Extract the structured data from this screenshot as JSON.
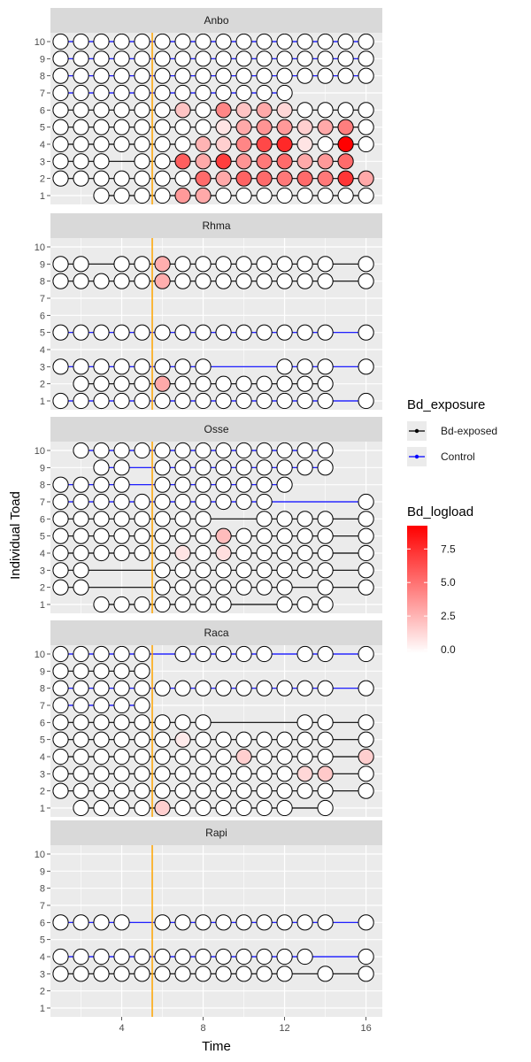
{
  "chart_data": {
    "type": "scatter",
    "xlabel": "Time",
    "ylabel": "Individual Toad",
    "xlim": [
      0.5,
      16.8
    ],
    "ylim": [
      0.5,
      10.5
    ],
    "x_ticks": [
      4,
      8,
      12,
      16
    ],
    "y_ticks": [
      1,
      2,
      3,
      4,
      5,
      6,
      7,
      8,
      9,
      10
    ],
    "exposure_line_x": 5.5,
    "colors": {
      "panel_bg": "#ebebeb",
      "grid": "#ffffff",
      "strip_bg": "#d9d9d9",
      "bd_exposed": "#000000",
      "control": "#0000ff",
      "vline": "#ffa500",
      "load_low": "#ffffff",
      "load_high": "#ff0000"
    },
    "legend": {
      "exposure_title": "Bd_exposure",
      "exposure_entries": [
        "Bd-exposed",
        "Control"
      ],
      "load_title": "Bd_logload",
      "load_max": 9.5,
      "load_ticks": [
        "0.0",
        "2.5",
        "5.0",
        "7.5"
      ]
    },
    "panels": [
      {
        "name": "Anbo",
        "toads": [
          {
            "id": 10,
            "group": "Control",
            "times": [
              1,
              2,
              3,
              4,
              5,
              6,
              7,
              8,
              9,
              10,
              11,
              12,
              13,
              14,
              15,
              16
            ],
            "loads": {}
          },
          {
            "id": 9,
            "group": "Control",
            "times": [
              1,
              2,
              3,
              4,
              5,
              6,
              7,
              8,
              9,
              10,
              11,
              12,
              13,
              14,
              15,
              16
            ],
            "loads": {}
          },
          {
            "id": 8,
            "group": "Control",
            "times": [
              1,
              2,
              3,
              4,
              5,
              6,
              7,
              8,
              9,
              10,
              11,
              12,
              13,
              14,
              15,
              16
            ],
            "loads": {}
          },
          {
            "id": 7,
            "group": "Control",
            "times": [
              1,
              2,
              3,
              4,
              5,
              6,
              7,
              8,
              9,
              10,
              11,
              12
            ],
            "loads": {}
          },
          {
            "id": 6,
            "group": "Bd-exposed",
            "times": [
              1,
              2,
              3,
              4,
              5,
              6,
              7,
              8,
              9,
              10,
              11,
              12,
              13,
              14,
              15,
              16
            ],
            "loads": {
              "7": 2.2,
              "9": 4.5,
              "10": 2.2,
              "11": 3.2,
              "12": 1.5
            }
          },
          {
            "id": 5,
            "group": "Bd-exposed",
            "times": [
              1,
              2,
              3,
              4,
              5,
              6,
              7,
              8,
              9,
              10,
              11,
              12,
              13,
              14,
              15,
              16
            ],
            "loads": {
              "9": 1.0,
              "10": 3.2,
              "11": 4.0,
              "12": 3.8,
              "13": 1.8,
              "14": 3.2,
              "15": 4.8
            }
          },
          {
            "id": 4,
            "group": "Bd-exposed",
            "times": [
              1,
              2,
              3,
              4,
              5,
              6,
              7,
              8,
              9,
              10,
              11,
              12,
              13,
              14,
              15,
              16
            ],
            "loads": {
              "8": 2.8,
              "9": 1.8,
              "10": 4.5,
              "11": 6.8,
              "12": 8.0,
              "13": 1.0,
              "15": 9.5
            }
          },
          {
            "id": 3,
            "group": "Bd-exposed",
            "times": [
              1,
              2,
              3,
              5,
              6,
              7,
              8,
              9,
              10,
              11,
              12,
              13,
              14,
              15
            ],
            "loads": {
              "7": 6.0,
              "8": 3.2,
              "9": 7.2,
              "10": 4.0,
              "11": 5.0,
              "12": 5.5,
              "13": 3.2,
              "14": 3.8,
              "15": 5.5
            }
          },
          {
            "id": 2,
            "group": "Bd-exposed",
            "times": [
              1,
              2,
              3,
              4,
              5,
              6,
              7,
              8,
              9,
              10,
              11,
              12,
              13,
              14,
              15,
              16
            ],
            "loads": {
              "8": 5.5,
              "9": 3.2,
              "10": 5.8,
              "11": 5.5,
              "12": 5.0,
              "13": 5.5,
              "14": 5.0,
              "15": 7.5,
              "16": 3.2
            }
          },
          {
            "id": 1,
            "group": "Bd-exposed",
            "times": [
              3,
              4,
              5,
              6,
              7,
              8,
              9,
              10,
              11,
              12,
              13,
              14,
              15,
              16
            ],
            "loads": {
              "7": 3.8,
              "8": 3.2
            }
          }
        ]
      },
      {
        "name": "Rhma",
        "toads": [
          {
            "id": 9,
            "group": "Bd-exposed",
            "times": [
              1,
              2,
              4,
              5,
              6,
              7,
              8,
              9,
              10,
              11,
              12,
              13,
              14,
              16
            ],
            "loads": {
              "6": 3.0
            }
          },
          {
            "id": 8,
            "group": "Bd-exposed",
            "times": [
              1,
              2,
              3,
              4,
              5,
              6,
              7,
              8,
              9,
              10,
              11,
              12,
              13,
              14,
              16
            ],
            "loads": {
              "6": 3.0
            }
          },
          {
            "id": 5,
            "group": "Control",
            "times": [
              1,
              2,
              3,
              4,
              5,
              6,
              7,
              8,
              9,
              10,
              11,
              12,
              13,
              14,
              16
            ],
            "loads": {}
          },
          {
            "id": 3,
            "group": "Control",
            "times": [
              1,
              2,
              3,
              4,
              5,
              6,
              7,
              8,
              12,
              13,
              14,
              16
            ],
            "loads": {}
          },
          {
            "id": 2,
            "group": "Bd-exposed",
            "times": [
              2,
              3,
              4,
              5,
              6,
              7,
              8,
              9,
              10,
              11,
              12,
              13,
              14
            ],
            "loads": {
              "6": 3.2
            }
          },
          {
            "id": 1,
            "group": "Control",
            "times": [
              1,
              2,
              3,
              4,
              5,
              6,
              7,
              8,
              9,
              10,
              11,
              12,
              13,
              14,
              16
            ],
            "loads": {}
          }
        ]
      },
      {
        "name": "Osse",
        "toads": [
          {
            "id": 10,
            "group": "Control",
            "times": [
              2,
              3,
              4,
              5,
              6,
              7,
              8,
              9,
              10,
              11,
              12,
              13,
              14
            ],
            "loads": {}
          },
          {
            "id": 9,
            "group": "Control",
            "times": [
              3,
              4,
              6,
              7,
              8,
              9,
              10,
              11,
              12,
              13,
              14
            ],
            "loads": {}
          },
          {
            "id": 8,
            "group": "Control",
            "times": [
              1,
              2,
              3,
              4,
              6,
              7,
              8,
              9,
              10,
              11,
              12
            ],
            "loads": {}
          },
          {
            "id": 7,
            "group": "Control",
            "times": [
              1,
              2,
              3,
              4,
              5,
              6,
              7,
              8,
              9,
              10,
              11,
              16
            ],
            "loads": {}
          },
          {
            "id": 6,
            "group": "Bd-exposed",
            "times": [
              1,
              2,
              3,
              4,
              5,
              6,
              7,
              8,
              11,
              12,
              13,
              14,
              16
            ],
            "loads": {}
          },
          {
            "id": 5,
            "group": "Bd-exposed",
            "times": [
              1,
              2,
              3,
              4,
              5,
              6,
              7,
              8,
              9,
              10,
              11,
              12,
              13,
              14,
              16
            ],
            "loads": {
              "9": 2.5
            }
          },
          {
            "id": 4,
            "group": "Bd-exposed",
            "times": [
              1,
              2,
              3,
              4,
              5,
              6,
              7,
              8,
              9,
              10,
              11,
              12,
              13,
              14,
              16
            ],
            "loads": {
              "7": 1.0,
              "9": 1.2
            }
          },
          {
            "id": 3,
            "group": "Bd-exposed",
            "times": [
              1,
              2,
              6,
              7,
              8,
              9,
              10,
              11,
              12,
              13,
              14,
              16
            ],
            "loads": {}
          },
          {
            "id": 2,
            "group": "Bd-exposed",
            "times": [
              1,
              2,
              6,
              7,
              8,
              9,
              10,
              11,
              12,
              14,
              16
            ],
            "loads": {}
          },
          {
            "id": 1,
            "group": "Bd-exposed",
            "times": [
              3,
              4,
              5,
              6,
              7,
              8,
              9,
              12,
              13,
              14
            ],
            "loads": {}
          }
        ]
      },
      {
        "name": "Raca",
        "toads": [
          {
            "id": 10,
            "group": "Control",
            "times": [
              1,
              2,
              3,
              4,
              5,
              7,
              8,
              9,
              10,
              11,
              13,
              14,
              16
            ],
            "loads": {}
          },
          {
            "id": 9,
            "group": "Bd-exposed",
            "times": [
              1,
              2,
              3,
              4,
              5
            ],
            "loads": {}
          },
          {
            "id": 8,
            "group": "Control",
            "times": [
              1,
              2,
              3,
              4,
              5,
              6,
              7,
              8,
              9,
              10,
              11,
              12,
              13,
              14,
              16
            ],
            "loads": {}
          },
          {
            "id": 7,
            "group": "Control",
            "times": [
              1,
              2,
              3,
              4,
              5
            ],
            "loads": {}
          },
          {
            "id": 6,
            "group": "Bd-exposed",
            "times": [
              1,
              2,
              3,
              4,
              5,
              6,
              7,
              8,
              13,
              14,
              16
            ],
            "loads": {}
          },
          {
            "id": 5,
            "group": "Bd-exposed",
            "times": [
              1,
              2,
              3,
              4,
              5,
              6,
              7,
              8,
              9,
              10,
              11,
              12,
              13,
              14,
              16
            ],
            "loads": {
              "7": 0.8
            }
          },
          {
            "id": 4,
            "group": "Bd-exposed",
            "times": [
              1,
              2,
              3,
              4,
              5,
              6,
              7,
              8,
              9,
              10,
              11,
              12,
              13,
              14,
              16
            ],
            "loads": {
              "10": 1.8,
              "16": 1.8
            }
          },
          {
            "id": 3,
            "group": "Bd-exposed",
            "times": [
              1,
              2,
              3,
              4,
              5,
              6,
              7,
              8,
              9,
              10,
              11,
              12,
              13,
              14,
              16
            ],
            "loads": {
              "13": 1.5,
              "14": 2.0
            }
          },
          {
            "id": 2,
            "group": "Bd-exposed",
            "times": [
              1,
              2,
              3,
              4,
              5,
              6,
              7,
              8,
              9,
              10,
              11,
              12,
              13,
              14,
              16
            ],
            "loads": {}
          },
          {
            "id": 1,
            "group": "Bd-exposed",
            "times": [
              2,
              3,
              4,
              5,
              6,
              7,
              8,
              9,
              10,
              11,
              12,
              14
            ],
            "loads": {
              "6": 1.8
            }
          }
        ]
      },
      {
        "name": "Rapi",
        "toads": [
          {
            "id": 6,
            "group": "Control",
            "times": [
              1,
              2,
              3,
              4,
              6,
              7,
              8,
              9,
              10,
              11,
              12,
              13,
              14,
              16
            ],
            "loads": {}
          },
          {
            "id": 4,
            "group": "Control",
            "times": [
              1,
              2,
              3,
              4,
              5,
              6,
              7,
              8,
              9,
              10,
              11,
              12,
              13,
              16
            ],
            "loads": {}
          },
          {
            "id": 3,
            "group": "Bd-exposed",
            "times": [
              1,
              2,
              3,
              4,
              5,
              6,
              7,
              8,
              9,
              10,
              11,
              12,
              14,
              16
            ],
            "loads": {}
          }
        ]
      }
    ]
  }
}
